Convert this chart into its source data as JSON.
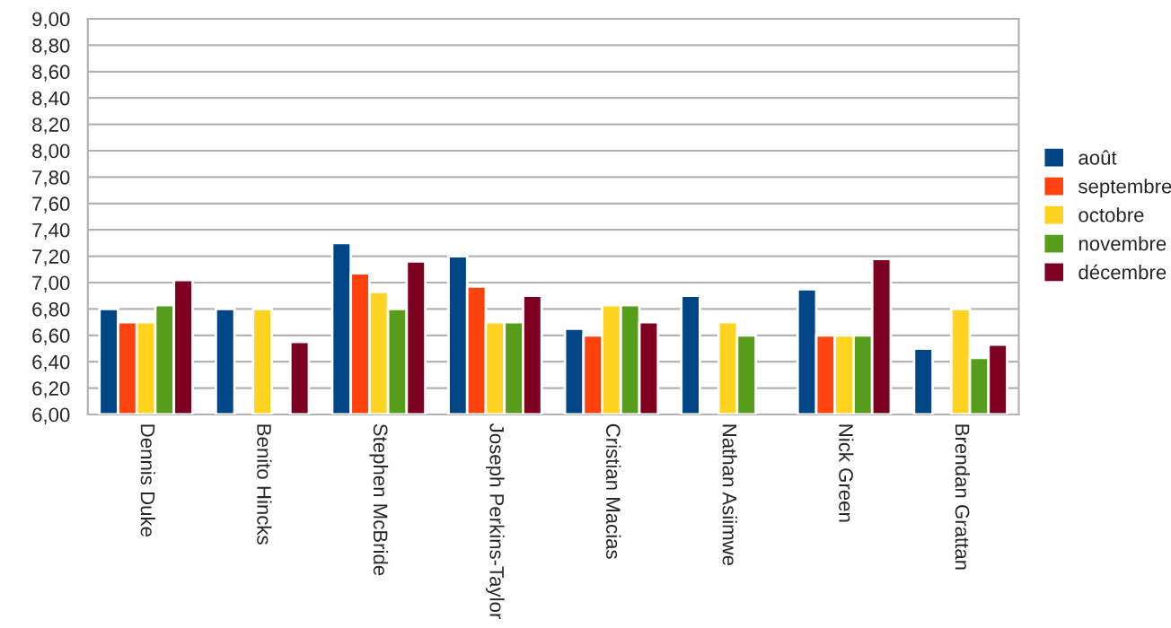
{
  "chart_data": {
    "type": "bar",
    "categories": [
      "Dennis Duke",
      "Benito Hincks",
      "Stephen McBride",
      "Joseph Perkins-Taylor",
      "Cristian Macias",
      "Nathan Asiimwe",
      "Nick Green",
      "Brendan Grattan"
    ],
    "series": [
      {
        "name": "août",
        "color": "#004586",
        "values": [
          6.8,
          6.8,
          7.3,
          7.2,
          6.65,
          6.9,
          6.95,
          6.5
        ]
      },
      {
        "name": "septembre",
        "color": "#ff420e",
        "values": [
          6.7,
          null,
          7.07,
          6.97,
          6.6,
          null,
          6.6,
          null
        ]
      },
      {
        "name": "octobre",
        "color": "#ffd320",
        "values": [
          6.7,
          6.8,
          6.93,
          6.7,
          6.83,
          6.7,
          6.6,
          6.8
        ]
      },
      {
        "name": "novembre",
        "color": "#579d1c",
        "values": [
          6.83,
          null,
          6.8,
          6.7,
          6.83,
          6.6,
          6.6,
          6.43
        ]
      },
      {
        "name": "décembre",
        "color": "#7e0021",
        "values": [
          7.02,
          6.55,
          7.16,
          6.9,
          6.7,
          null,
          7.18,
          6.53
        ]
      }
    ],
    "ylim": [
      6,
      9
    ],
    "yticks": [
      {
        "value": 6,
        "label": "6,00"
      },
      {
        "value": 6.2,
        "label": "6,20"
      },
      {
        "value": 6.4,
        "label": "6,40"
      },
      {
        "value": 6.6,
        "label": "6,60"
      },
      {
        "value": 6.8,
        "label": "6,80"
      },
      {
        "value": 7,
        "label": "7,00"
      },
      {
        "value": 7.2,
        "label": "7,20"
      },
      {
        "value": 7.4,
        "label": "7,40"
      },
      {
        "value": 7.6,
        "label": "7,60"
      },
      {
        "value": 7.8,
        "label": "7,80"
      },
      {
        "value": 8,
        "label": "8,00"
      },
      {
        "value": 8.2,
        "label": "8,20"
      },
      {
        "value": 8.4,
        "label": "8,40"
      },
      {
        "value": 8.6,
        "label": "8,60"
      },
      {
        "value": 8.8,
        "label": "8,80"
      },
      {
        "value": 9,
        "label": "9,00"
      }
    ],
    "grid": "y",
    "legend": "right"
  }
}
